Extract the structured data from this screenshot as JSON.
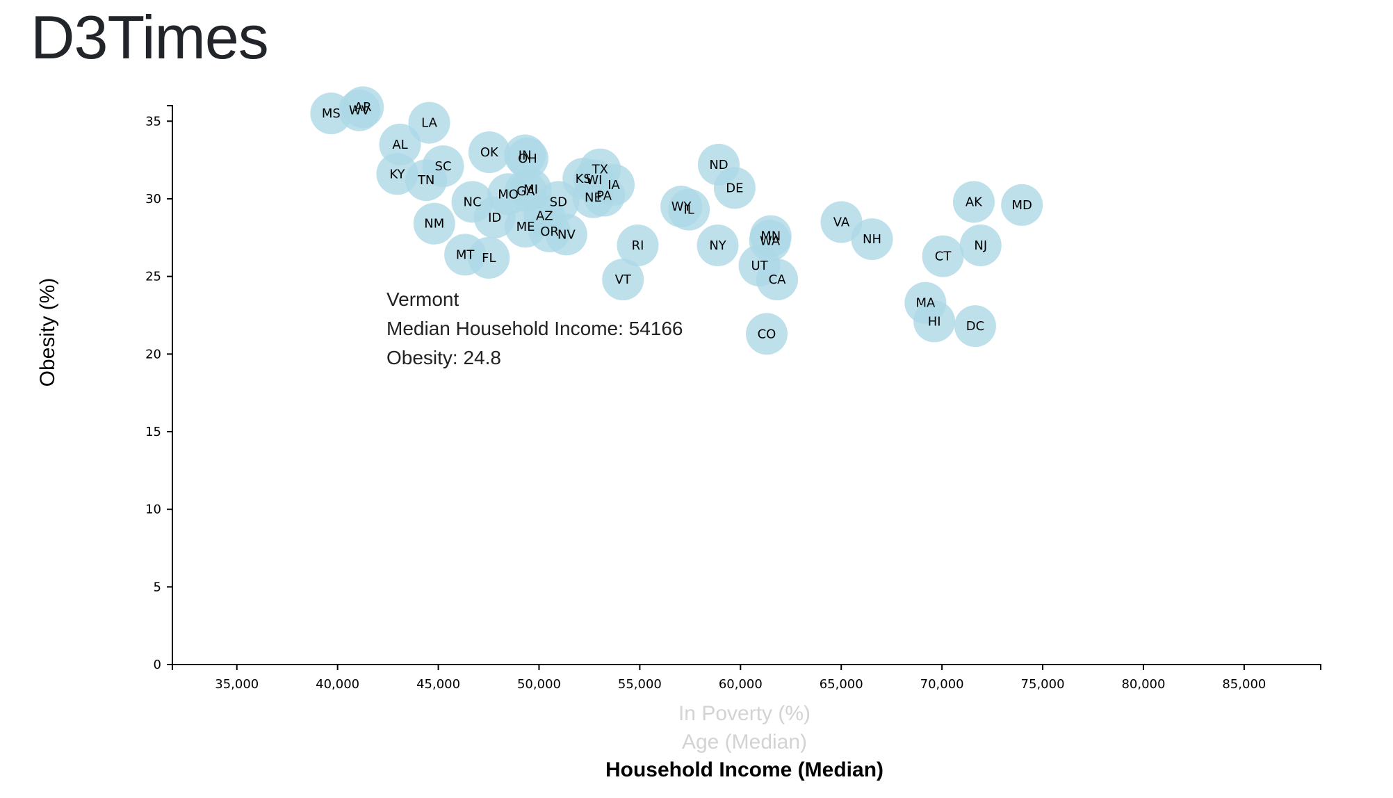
{
  "app": {
    "title": "D3Times"
  },
  "chart_data": {
    "type": "scatter",
    "title": "",
    "ylabel": "Obesity (%)",
    "x_axis_options": [
      "In Poverty (%)",
      "Age (Median)",
      "Household Income (Median)"
    ],
    "active_x_axis": "Household Income (Median)",
    "xlim": [
      31800,
      88800
    ],
    "ylim": [
      0,
      36
    ],
    "x_ticks": [
      35000,
      40000,
      45000,
      50000,
      55000,
      60000,
      65000,
      70000,
      75000,
      80000,
      85000
    ],
    "x_tick_labels": [
      "35,000",
      "40,000",
      "45,000",
      "50,000",
      "55,000",
      "60,000",
      "65,000",
      "70,000",
      "75,000",
      "80,000",
      "85,000"
    ],
    "y_ticks": [
      0,
      5,
      10,
      15,
      20,
      25,
      30,
      35
    ],
    "y_tick_labels": [
      "0",
      "5",
      "10",
      "15",
      "20",
      "25",
      "30",
      "35"
    ],
    "grid": false,
    "marker_color": "#add8e6",
    "points": [
      {
        "abbr": "MS",
        "x": 39680,
        "y": 35.5
      },
      {
        "abbr": "AR",
        "x": 41260,
        "y": 35.9
      },
      {
        "abbr": "WV",
        "x": 41080,
        "y": 35.7
      },
      {
        "abbr": "LA",
        "x": 44550,
        "y": 34.9
      },
      {
        "abbr": "AL",
        "x": 43100,
        "y": 33.5
      },
      {
        "abbr": "KY",
        "x": 42960,
        "y": 31.6
      },
      {
        "abbr": "TN",
        "x": 44400,
        "y": 31.2
      },
      {
        "abbr": "SC",
        "x": 45240,
        "y": 32.1
      },
      {
        "abbr": "OK",
        "x": 47530,
        "y": 33.0
      },
      {
        "abbr": "IN",
        "x": 49300,
        "y": 32.8
      },
      {
        "abbr": "OH",
        "x": 49430,
        "y": 32.6
      },
      {
        "abbr": "NM",
        "x": 44800,
        "y": 28.4
      },
      {
        "abbr": "NC",
        "x": 46690,
        "y": 29.8
      },
      {
        "abbr": "ID",
        "x": 47800,
        "y": 28.8
      },
      {
        "abbr": "MO",
        "x": 48470,
        "y": 30.3
      },
      {
        "abbr": "GA",
        "x": 49340,
        "y": 30.5
      },
      {
        "abbr": "MI",
        "x": 49590,
        "y": 30.6
      },
      {
        "abbr": "SD",
        "x": 50960,
        "y": 29.8
      },
      {
        "abbr": "AZ",
        "x": 50270,
        "y": 28.9
      },
      {
        "abbr": "ME",
        "x": 49330,
        "y": 28.2
      },
      {
        "abbr": "OR",
        "x": 50520,
        "y": 27.9
      },
      {
        "abbr": "NV",
        "x": 51360,
        "y": 27.7
      },
      {
        "abbr": "MT",
        "x": 46330,
        "y": 26.4
      },
      {
        "abbr": "FL",
        "x": 47510,
        "y": 26.2
      },
      {
        "abbr": "KS",
        "x": 52200,
        "y": 31.3
      },
      {
        "abbr": "WI",
        "x": 52740,
        "y": 31.2
      },
      {
        "abbr": "TX",
        "x": 53030,
        "y": 31.9
      },
      {
        "abbr": "IA",
        "x": 53710,
        "y": 30.9
      },
      {
        "abbr": "NE",
        "x": 52690,
        "y": 30.1
      },
      {
        "abbr": "PA",
        "x": 53230,
        "y": 30.2
      },
      {
        "abbr": "RI",
        "x": 54900,
        "y": 27.0
      },
      {
        "abbr": "VT",
        "x": 54166,
        "y": 24.8
      },
      {
        "abbr": "WY",
        "x": 57060,
        "y": 29.5
      },
      {
        "abbr": "IL",
        "x": 57440,
        "y": 29.3
      },
      {
        "abbr": "NY",
        "x": 58870,
        "y": 27.0
      },
      {
        "abbr": "ND",
        "x": 58920,
        "y": 32.2
      },
      {
        "abbr": "DE",
        "x": 59710,
        "y": 30.7
      },
      {
        "abbr": "UT",
        "x": 60940,
        "y": 25.7
      },
      {
        "abbr": "CA",
        "x": 61820,
        "y": 24.8
      },
      {
        "abbr": "MN",
        "x": 61500,
        "y": 27.6
      },
      {
        "abbr": "WA",
        "x": 61460,
        "y": 27.3
      },
      {
        "abbr": "CO",
        "x": 61300,
        "y": 21.3
      },
      {
        "abbr": "VA",
        "x": 65010,
        "y": 28.5
      },
      {
        "abbr": "NH",
        "x": 66530,
        "y": 27.4
      },
      {
        "abbr": "CT",
        "x": 70050,
        "y": 26.3
      },
      {
        "abbr": "MA",
        "x": 69180,
        "y": 23.3
      },
      {
        "abbr": "HI",
        "x": 69620,
        "y": 22.1
      },
      {
        "abbr": "DC",
        "x": 71650,
        "y": 21.8
      },
      {
        "abbr": "AK",
        "x": 71580,
        "y": 29.8
      },
      {
        "abbr": "NJ",
        "x": 71920,
        "y": 27.0
      },
      {
        "abbr": "MD",
        "x": 73970,
        "y": 29.6
      }
    ],
    "tooltip": {
      "lines": [
        "Vermont",
        "Median Household Income: 54166",
        "Obesity: 24.8"
      ]
    }
  }
}
